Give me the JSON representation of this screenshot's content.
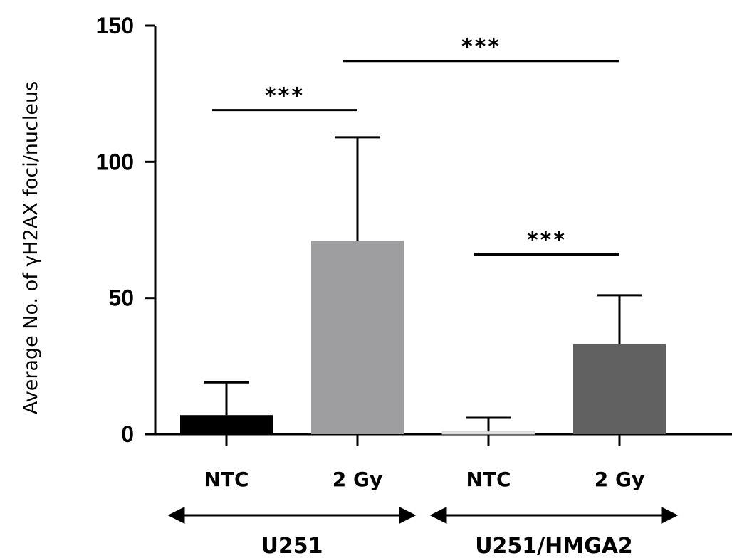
{
  "chart_data": {
    "type": "bar",
    "ylabel": "Average No. of γH2AX foci/nucleus",
    "ylim": [
      0,
      150
    ],
    "yticks": [
      "0",
      "50",
      "100",
      "150"
    ],
    "categories": [
      "NTC",
      "2 Gy",
      "NTC",
      "2 Gy"
    ],
    "values": [
      7,
      71,
      1,
      33
    ],
    "errors": [
      12,
      38,
      5,
      18
    ],
    "colors": [
      "#000000",
      "#9e9ea0",
      "#e6e6e6",
      "#616161"
    ],
    "groups": [
      {
        "label": "U251",
        "categories": [
          0,
          1
        ]
      },
      {
        "label": "U251/HMGA2",
        "categories": [
          2,
          3
        ]
      }
    ],
    "significance": [
      {
        "label": "***",
        "from": 0,
        "to": 1,
        "level": 119
      },
      {
        "label": "***",
        "from": 1,
        "to": 3,
        "level": 137
      },
      {
        "label": "***",
        "from": 2,
        "to": 3,
        "level": 66
      }
    ],
    "grid": false,
    "legend": "none"
  }
}
